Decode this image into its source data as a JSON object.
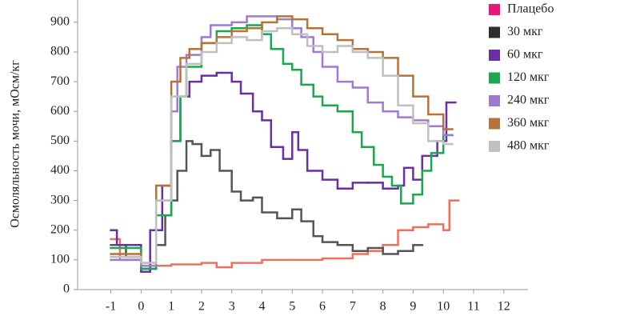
{
  "chart_data": {
    "type": "step-line",
    "y_label": "Осмоляльность мочи, мОсм/кг",
    "xlim": [
      -2.1,
      12.8
    ],
    "ylim": [
      0,
      975
    ],
    "xticks": [
      -1,
      0,
      1,
      2,
      3,
      4,
      5,
      6,
      7,
      8,
      9,
      10,
      11,
      12
    ],
    "yticks": [
      0,
      100,
      200,
      300,
      400,
      500,
      600,
      700,
      800,
      900
    ],
    "series": [
      {
        "name": "Плацебо",
        "color": "#e8157a",
        "line_color": "#f0705f",
        "x": [
          -1,
          -0.7,
          0,
          1,
          2,
          2.5,
          3,
          4,
          5,
          6,
          7,
          7.5,
          8,
          8.5,
          9,
          9.5,
          10,
          10.2
        ],
        "values": [
          170,
          100,
          80,
          85,
          90,
          75,
          90,
          100,
          100,
          105,
          120,
          130,
          150,
          200,
          210,
          220,
          200,
          300
        ]
      },
      {
        "name": "30 мкг",
        "color": "#2e2e2e",
        "line_color": "#555555",
        "x": [
          -1,
          -0.5,
          0,
          0.5,
          0.8,
          1,
          1.2,
          1.5,
          1.7,
          2,
          2.3,
          2.6,
          3,
          3.3,
          3.7,
          4,
          4.5,
          5,
          5.3,
          5.7,
          6,
          6.5,
          7,
          7.5,
          8,
          8.5,
          9
        ],
        "values": [
          150,
          110,
          70,
          150,
          250,
          300,
          400,
          500,
          490,
          450,
          470,
          400,
          330,
          300,
          310,
          260,
          240,
          270,
          230,
          180,
          160,
          150,
          130,
          140,
          120,
          130,
          150
        ]
      },
      {
        "name": "60 мкг",
        "color": "#6a2fa0",
        "line_color": "#6a2fa0",
        "x": [
          -1,
          -0.8,
          0,
          0.3,
          0.7,
          1,
          1.3,
          1.6,
          2,
          2.5,
          3,
          3.3,
          3.7,
          4,
          4.3,
          4.7,
          5,
          5.2,
          5.5,
          6,
          6.5,
          7,
          7.5,
          8,
          8.5,
          8.7,
          9,
          9.3,
          9.8,
          10.1
        ],
        "values": [
          200,
          150,
          60,
          200,
          350,
          500,
          650,
          700,
          720,
          730,
          700,
          660,
          600,
          570,
          480,
          440,
          530,
          470,
          400,
          370,
          340,
          360,
          360,
          340,
          350,
          410,
          370,
          450,
          500,
          630
        ]
      },
      {
        "name": "120 мкг",
        "color": "#1aa84f",
        "line_color": "#1aa84f",
        "x": [
          -1,
          0,
          0.5,
          1,
          1.3,
          1.5,
          2,
          2.5,
          3,
          3.5,
          4,
          4.3,
          4.7,
          5,
          5.3,
          5.7,
          6,
          6.5,
          7,
          7.3,
          7.7,
          8,
          8.3,
          8.6,
          9,
          9.3,
          9.6,
          10
        ],
        "values": [
          140,
          70,
          250,
          500,
          650,
          750,
          830,
          870,
          880,
          890,
          860,
          810,
          760,
          740,
          690,
          650,
          620,
          600,
          530,
          480,
          420,
          380,
          350,
          290,
          320,
          400,
          460,
          520
        ]
      },
      {
        "name": "240 мкг",
        "color": "#a07ad0",
        "line_color": "#a07ad0",
        "x": [
          -1,
          0,
          0.5,
          1,
          1.2,
          1.5,
          2,
          2.3,
          3,
          3.5,
          4,
          4.5,
          5,
          5.3,
          5.7,
          6,
          6.5,
          7,
          7.5,
          8,
          8.5,
          9,
          9.5,
          10
        ],
        "values": [
          100,
          80,
          300,
          600,
          750,
          790,
          850,
          890,
          900,
          920,
          920,
          910,
          880,
          850,
          800,
          750,
          700,
          680,
          630,
          600,
          580,
          570,
          550,
          520
        ]
      },
      {
        "name": "360 мкг",
        "color": "#b5733a",
        "line_color": "#b5733a",
        "x": [
          -1,
          0,
          0.5,
          1,
          1.3,
          1.6,
          2,
          2.5,
          3,
          3.5,
          4,
          4.5,
          5,
          5.5,
          6,
          6.5,
          7,
          7.5,
          8,
          8.5,
          9,
          9.5,
          10
        ],
        "values": [
          120,
          90,
          350,
          700,
          780,
          810,
          830,
          850,
          870,
          880,
          900,
          920,
          910,
          880,
          860,
          840,
          810,
          800,
          780,
          720,
          650,
          590,
          540
        ]
      },
      {
        "name": "480 мкг",
        "color": "#c0c0c0",
        "line_color": "#c0c0c0",
        "x": [
          -1,
          0,
          0.5,
          1,
          1.5,
          2,
          2.5,
          3,
          3.5,
          4,
          4.5,
          5,
          5.5,
          6,
          6.5,
          7,
          7.5,
          8,
          8.5,
          9,
          9.5,
          10
        ],
        "values": [
          110,
          90,
          300,
          650,
          760,
          800,
          830,
          850,
          840,
          870,
          880,
          860,
          820,
          800,
          820,
          800,
          780,
          720,
          620,
          560,
          500,
          490
        ]
      }
    ]
  }
}
